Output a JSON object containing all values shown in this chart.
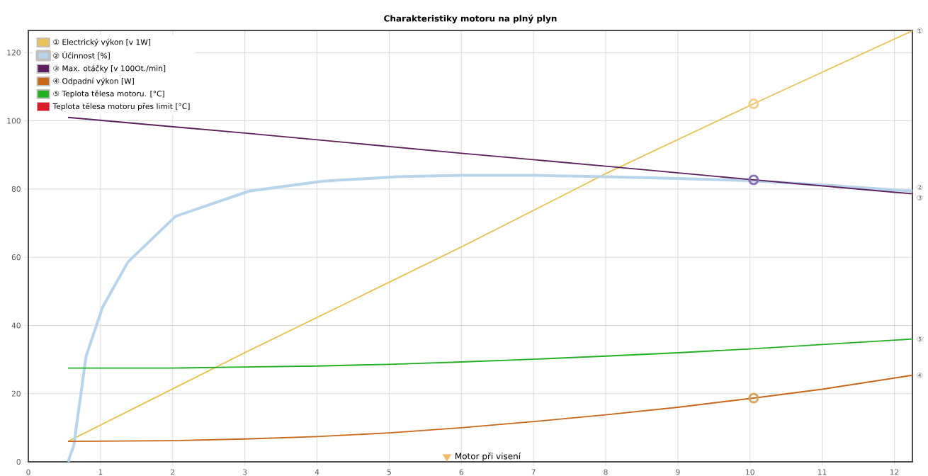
{
  "chart_data": {
    "type": "line",
    "title": "Charakteristiky motoru na plný plyn",
    "xlim": [
      0,
      12.25
    ],
    "ylim": [
      0,
      126.5
    ],
    "xticks": [
      0,
      1,
      2,
      3,
      4,
      5,
      6,
      7,
      8,
      9,
      10,
      11,
      12
    ],
    "yticks": [
      0,
      20,
      40,
      60,
      80,
      100,
      120
    ],
    "grid": true,
    "legend": "top left",
    "series": [
      {
        "name": "① Electrický výkon [v 1W]",
        "color": "#e8c35a",
        "x": [
          0.55,
          3,
          6,
          8,
          10.05,
          12.25
        ],
        "values": [
          6,
          32,
          63,
          84.5,
          105,
          126.4
        ]
      },
      {
        "name": "② Účinnost [%]",
        "color": "#b8d4ea",
        "x": [
          0.55,
          0.63,
          0.8,
          1.03,
          1.38,
          2.04,
          3.06,
          4.08,
          5.1,
          6,
          7,
          8,
          9,
          10.05,
          11,
          12.25
        ],
        "values": [
          0,
          4.8,
          31,
          45.4,
          58.6,
          72,
          79.4,
          82.3,
          83.6,
          84,
          84,
          83.6,
          83.1,
          82.4,
          81.2,
          79.4
        ]
      },
      {
        "name": "③ Max. otáčky [v 100Ot./min]",
        "color": "#5c1f5e",
        "x": [
          0.55,
          3,
          6,
          8,
          10.05,
          12.25
        ],
        "values": [
          101,
          96.4,
          90.5,
          86.7,
          82.7,
          78.6
        ]
      },
      {
        "name": "④ Odpadní výkon [W]",
        "color": "#c8661a",
        "x": [
          0.55,
          2,
          3,
          4,
          5,
          6,
          7,
          8,
          9,
          10.05,
          11,
          12.25
        ],
        "values": [
          6,
          6.2,
          6.7,
          7.4,
          8.5,
          10,
          11.8,
          13.8,
          16,
          18.7,
          21.3,
          25.4
        ]
      },
      {
        "name": "⑤ Teplota tělesa motoru. [°C]",
        "color": "#22b022",
        "x": [
          0.55,
          2,
          3,
          4,
          5,
          6,
          7,
          8,
          9,
          10,
          11,
          12.25
        ],
        "values": [
          27.5,
          27.5,
          27.8,
          28.1,
          28.6,
          29.3,
          30.1,
          31,
          32,
          33.1,
          34.4,
          36
        ]
      },
      {
        "name": "Teplota tělesa motoru přes limit [°C]",
        "color": "#d81e2a"
      },
      {
        "type": "scatter",
        "marker": "circle",
        "colors": [
          "#f0d08a",
          "#8a6fb0",
          "#d9a060"
        ],
        "x": [
          10.05,
          10.05,
          10.05
        ],
        "values": [
          105,
          82.7,
          18.7
        ]
      },
      {
        "type": "scatter",
        "marker": "triangle",
        "color": "#f8b870",
        "x": [
          5.8
        ],
        "values": [
          1.5
        ]
      }
    ],
    "annotations": [
      "Motor při visení",
      "①",
      "②",
      "③",
      "④",
      "⑤"
    ]
  }
}
